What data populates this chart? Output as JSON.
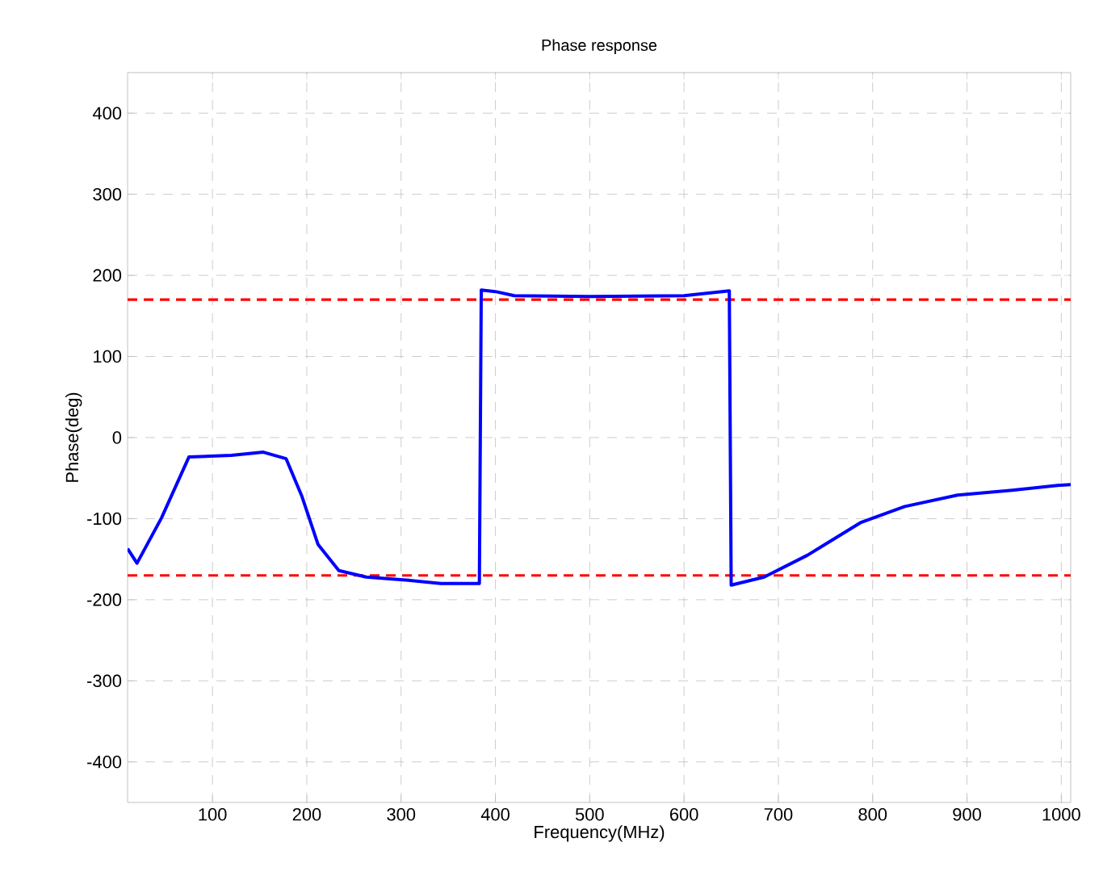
{
  "chart_data": {
    "type": "line",
    "title": "Phase response",
    "xlabel": "Frequency(MHz)",
    "ylabel": "Phase(deg)",
    "xlim": [
      10,
      1010
    ],
    "ylim": [
      -450,
      450
    ],
    "xticks": [
      100,
      200,
      300,
      400,
      500,
      600,
      700,
      800,
      900,
      1000
    ],
    "yticks": [
      -400,
      -300,
      -200,
      -100,
      0,
      100,
      200,
      300,
      400
    ],
    "grid": true,
    "marker": "none",
    "line_style": "solid",
    "series": [
      {
        "color": "#0000ff",
        "x": [
          10,
          20,
          46,
          75,
          120,
          154,
          178,
          195,
          212,
          234,
          263,
          308,
          342,
          383,
          385,
          400,
          420,
          500,
          600,
          640,
          648,
          650,
          685,
          731,
          787,
          834,
          890,
          948,
          996,
          1010
        ],
        "values": [
          -137,
          -155,
          -99,
          -24,
          -22,
          -18,
          -26,
          -73,
          -132,
          -164,
          -172,
          -176,
          -180,
          -180,
          182,
          180,
          175,
          174,
          175,
          180,
          181,
          -182,
          -172,
          -145,
          -105,
          -85,
          -71,
          -65,
          -59,
          -58
        ]
      }
    ],
    "ref_lines": [
      {
        "axis": "y",
        "value": 170,
        "color": "#ff0000",
        "line_style": "dashed"
      },
      {
        "axis": "y",
        "value": -170,
        "color": "#ff0000",
        "line_style": "dashed"
      }
    ]
  }
}
